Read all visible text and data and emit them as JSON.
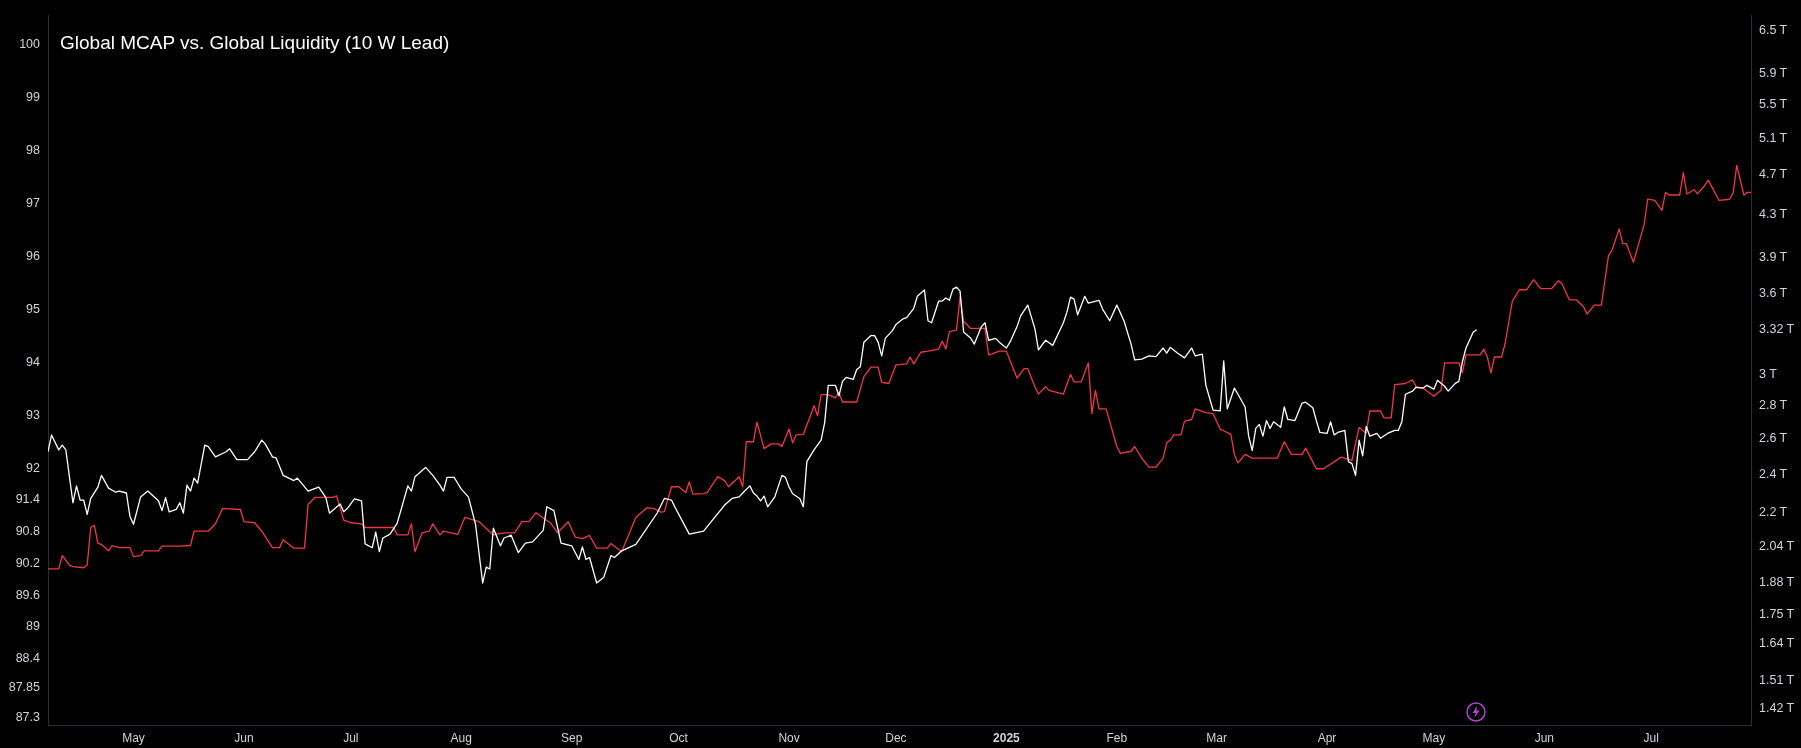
{
  "chart_data": {
    "type": "line",
    "title": "Global MCAP vs. Global Liquidity (10 W Lead)",
    "xlim": [
      "2024-04-07",
      "2025-07-29"
    ],
    "xticks": [
      {
        "value": "2024-05-01",
        "label": "May"
      },
      {
        "value": "2024-06-01",
        "label": "Jun"
      },
      {
        "value": "2024-07-01",
        "label": "Jul"
      },
      {
        "value": "2024-08-01",
        "label": "Aug"
      },
      {
        "value": "2024-09-01",
        "label": "Sep"
      },
      {
        "value": "2024-10-01",
        "label": "Oct"
      },
      {
        "value": "2024-11-01",
        "label": "Nov"
      },
      {
        "value": "2024-12-01",
        "label": "Dec"
      },
      {
        "value": "2025-01-01",
        "label": "2025"
      },
      {
        "value": "2025-02-01",
        "label": "Feb"
      },
      {
        "value": "2025-03-01",
        "label": "Mar"
      },
      {
        "value": "2025-04-01",
        "label": "Apr"
      },
      {
        "value": "2025-05-01",
        "label": "May"
      },
      {
        "value": "2025-06-01",
        "label": "Jun"
      },
      {
        "value": "2025-07-01",
        "label": "Jul"
      }
    ],
    "ylim": [
      87.15,
      100.55
    ],
    "yticks": [
      87.3,
      87.85,
      88.4,
      89,
      89.6,
      90.2,
      90.8,
      91.4,
      92,
      93,
      94,
      95,
      96,
      97,
      98,
      99,
      100
    ],
    "y2lim": [
      1.367,
      6.72
    ],
    "y2ticks": [
      {
        "value": 1.42,
        "label": "1.42 T"
      },
      {
        "value": 1.51,
        "label": "1.51 T"
      },
      {
        "value": 1.64,
        "label": "1.64 T"
      },
      {
        "value": 1.75,
        "label": "1.75 T"
      },
      {
        "value": 1.88,
        "label": "1.88 T"
      },
      {
        "value": 2.04,
        "label": "2.04 T"
      },
      {
        "value": 2.2,
        "label": "2.2 T"
      },
      {
        "value": 2.4,
        "label": "2.4 T"
      },
      {
        "value": 2.6,
        "label": "2.6 T"
      },
      {
        "value": 2.8,
        "label": "2.8 T"
      },
      {
        "value": 3,
        "label": "3 T"
      },
      {
        "value": 3.32,
        "label": "3.32 T"
      },
      {
        "value": 3.6,
        "label": "3.6 T"
      },
      {
        "value": 3.9,
        "label": "3.9 T"
      },
      {
        "value": 4.3,
        "label": "4.3 T"
      },
      {
        "value": 4.7,
        "label": "4.7 T"
      },
      {
        "value": 5.1,
        "label": "5.1 T"
      },
      {
        "value": 5.5,
        "label": "5.5 T"
      },
      {
        "value": 5.9,
        "label": "5.9 T"
      },
      {
        "value": 6.5,
        "label": "6.5 T"
      }
    ],
    "log": "y2",
    "grid": false,
    "legend": false,
    "marker": "none",
    "line_style": "solid",
    "series": [
      {
        "color": "#ffffff",
        "axis": "y2",
        "x": [
          "2024-04-07",
          "2024-04-08",
          "2024-04-10",
          "2024-04-11",
          "2024-04-12",
          "2024-04-14",
          "2024-04-15",
          "2024-04-16",
          "2024-04-17",
          "2024-04-18",
          "2024-04-19",
          "2024-04-21",
          "2024-04-22",
          "2024-04-24",
          "2024-04-26",
          "2024-04-27",
          "2024-04-29",
          "2024-04-30",
          "2024-05-01",
          "2024-05-03",
          "2024-05-05",
          "2024-05-08",
          "2024-05-09",
          "2024-05-10",
          "2024-05-11",
          "2024-05-13",
          "2024-05-14",
          "2024-05-15",
          "2024-05-16",
          "2024-05-17",
          "2024-05-18",
          "2024-05-19",
          "2024-05-21",
          "2024-05-22",
          "2024-05-24",
          "2024-05-27",
          "2024-05-28",
          "2024-05-30",
          "2024-06-02",
          "2024-06-04",
          "2024-06-06",
          "2024-06-07",
          "2024-06-09",
          "2024-06-10",
          "2024-06-12",
          "2024-06-15",
          "2024-06-16",
          "2024-06-19",
          "2024-06-22",
          "2024-06-24",
          "2024-06-25",
          "2024-06-28",
          "2024-06-29",
          "2024-06-30",
          "2024-07-02",
          "2024-07-04",
          "2024-07-05",
          "2024-07-07",
          "2024-07-08",
          "2024-07-09",
          "2024-07-10",
          "2024-07-12",
          "2024-07-14",
          "2024-07-17",
          "2024-07-18",
          "2024-07-19",
          "2024-07-22",
          "2024-07-24",
          "2024-07-26",
          "2024-07-27",
          "2024-07-28",
          "2024-07-30",
          "2024-07-31",
          "2024-08-01",
          "2024-08-03",
          "2024-08-05",
          "2024-08-07",
          "2024-08-08",
          "2024-08-09",
          "2024-08-10",
          "2024-08-12",
          "2024-08-13",
          "2024-08-15",
          "2024-08-17",
          "2024-08-19",
          "2024-08-21",
          "2024-08-24",
          "2024-08-25",
          "2024-08-27",
          "2024-08-29",
          "2024-09-01",
          "2024-09-03",
          "2024-09-04",
          "2024-09-05",
          "2024-09-06",
          "2024-09-08",
          "2024-09-10",
          "2024-09-12",
          "2024-09-13",
          "2024-09-15",
          "2024-09-19",
          "2024-09-25",
          "2024-09-27",
          "2024-09-29",
          "2024-09-30",
          "2024-10-04",
          "2024-10-08",
          "2024-10-14",
          "2024-10-16",
          "2024-10-18",
          "2024-10-19",
          "2024-10-21",
          "2024-10-22",
          "2024-10-23",
          "2024-10-24",
          "2024-10-25",
          "2024-10-26",
          "2024-10-28",
          "2024-10-30",
          "2024-10-31",
          "2024-11-01",
          "2024-11-02",
          "2024-11-04",
          "2024-11-05",
          "2024-11-06",
          "2024-11-08",
          "2024-11-10",
          "2024-11-11",
          "2024-11-12",
          "2024-11-14",
          "2024-11-15",
          "2024-11-16",
          "2024-11-17",
          "2024-11-19",
          "2024-11-20",
          "2024-11-21",
          "2024-11-22",
          "2024-11-24",
          "2024-11-25",
          "2024-11-26",
          "2024-11-27",
          "2024-11-28",
          "2024-11-30",
          "2024-12-01",
          "2024-12-03",
          "2024-12-04",
          "2024-12-06",
          "2024-12-07",
          "2024-12-09",
          "2024-12-10",
          "2024-12-11",
          "2024-12-13",
          "2024-12-14",
          "2024-12-15",
          "2024-12-16",
          "2024-12-17",
          "2024-12-18",
          "2024-12-19",
          "2024-12-20",
          "2024-12-22",
          "2024-12-23",
          "2024-12-25",
          "2024-12-26",
          "2024-12-27",
          "2024-12-29",
          "2024-12-30",
          "2025-01-01",
          "2025-01-02",
          "2025-01-04",
          "2025-01-05",
          "2025-01-07",
          "2025-01-09",
          "2025-01-10",
          "2025-01-12",
          "2025-01-14",
          "2025-01-17",
          "2025-01-18",
          "2025-01-19",
          "2025-01-20",
          "2025-01-21",
          "2025-01-23",
          "2025-01-24",
          "2025-01-27",
          "2025-01-28",
          "2025-01-30",
          "2025-02-01",
          "2025-02-03",
          "2025-02-05",
          "2025-02-06",
          "2025-02-08",
          "2025-02-10",
          "2025-02-12",
          "2025-02-14",
          "2025-02-15",
          "2025-02-16",
          "2025-02-18",
          "2025-02-20",
          "2025-02-22",
          "2025-02-23",
          "2025-02-25",
          "2025-02-26",
          "2025-02-28",
          "2025-03-02",
          "2025-03-03",
          "2025-03-04",
          "2025-03-06",
          "2025-03-07",
          "2025-03-09",
          "2025-03-10",
          "2025-03-11",
          "2025-03-12",
          "2025-03-13",
          "2025-03-14",
          "2025-03-15",
          "2025-03-16",
          "2025-03-17",
          "2025-03-19",
          "2025-03-20",
          "2025-03-21",
          "2025-03-23",
          "2025-03-24",
          "2025-03-25",
          "2025-03-26",
          "2025-03-28",
          "2025-03-29",
          "2025-03-30",
          "2025-04-01",
          "2025-04-02",
          "2025-04-03",
          "2025-04-04",
          "2025-04-06",
          "2025-04-07",
          "2025-04-08",
          "2025-04-09",
          "2025-04-10",
          "2025-04-11",
          "2025-04-12",
          "2025-04-13",
          "2025-04-15",
          "2025-04-16",
          "2025-04-18",
          "2025-04-20",
          "2025-04-21",
          "2025-04-22",
          "2025-04-23",
          "2025-04-25",
          "2025-04-26",
          "2025-04-28",
          "2025-04-29",
          "2025-05-01",
          "2025-05-02",
          "2025-05-04",
          "2025-05-05",
          "2025-05-07",
          "2025-05-08",
          "2025-05-09",
          "2025-05-10",
          "2025-05-11",
          "2025-05-12",
          "2025-05-13"
        ],
        "values": [
          2.524,
          2.621,
          2.535,
          2.562,
          2.535,
          2.251,
          2.338,
          2.265,
          2.265,
          2.193,
          2.273,
          2.332,
          2.394,
          2.326,
          2.305,
          2.311,
          2.301,
          2.183,
          2.145,
          2.281,
          2.311,
          2.261,
          2.212,
          2.277,
          2.206,
          2.218,
          2.251,
          2.199,
          2.342,
          2.311,
          2.379,
          2.352,
          2.562,
          2.553,
          2.495,
          2.524,
          2.541,
          2.48,
          2.48,
          2.524,
          2.591,
          2.568,
          2.495,
          2.49,
          2.394,
          2.366,
          2.379,
          2.311,
          2.332,
          2.277,
          2.199,
          2.245,
          2.206,
          2.222,
          2.271,
          2.261,
          2.053,
          2.035,
          2.108,
          2.017,
          2.08,
          2.098,
          2.149,
          2.338,
          2.311,
          2.387,
          2.437,
          2.394,
          2.342,
          2.311,
          2.383,
          2.383,
          2.352,
          2.321,
          2.281,
          2.145,
          1.88,
          1.948,
          1.94,
          2.126,
          2.044,
          2.08,
          2.093,
          2.013,
          2.056,
          2.062,
          2.116,
          2.231,
          2.212,
          2.056,
          2.044,
          1.982,
          2.039,
          1.982,
          1.991,
          1.88,
          1.905,
          1.999,
          1.991,
          2.021,
          2.05,
          2.2,
          2.273,
          2.265,
          2.228,
          2.098,
          2.112,
          2.241,
          2.273,
          2.281,
          2.301,
          2.338,
          2.301,
          2.285,
          2.261,
          2.285,
          2.231,
          2.281,
          2.394,
          2.383,
          2.332,
          2.297,
          2.273,
          2.231,
          2.469,
          2.535,
          2.591,
          2.695,
          2.93,
          2.93,
          2.862,
          2.956,
          2.982,
          2.969,
          3.036,
          3.055,
          3.228,
          3.276,
          3.276,
          3.228,
          3.13,
          3.256,
          3.313,
          3.358,
          3.402,
          3.411,
          3.483,
          3.578,
          3.629,
          3.387,
          3.372,
          3.54,
          3.54,
          3.565,
          3.546,
          3.636,
          3.652,
          3.62,
          3.302,
          3.256,
          3.214,
          3.343,
          3.372,
          3.242,
          3.256,
          3.228,
          3.186,
          3.228,
          3.343,
          3.424,
          3.508,
          3.328,
          3.172,
          3.242,
          3.205,
          3.372,
          3.453,
          3.571,
          3.556,
          3.433,
          3.578,
          3.524,
          3.546,
          3.477,
          3.387,
          3.508,
          3.387,
          3.214,
          3.103,
          3.108,
          3.13,
          3.125,
          3.186,
          3.15,
          3.191,
          3.15,
          3.116,
          3.186,
          3.13,
          3.143,
          2.93,
          2.772,
          2.767,
          3.095,
          2.779,
          2.912,
          2.872,
          2.791,
          2.614,
          2.531,
          2.66,
          2.684,
          2.614,
          2.707,
          2.66,
          2.7,
          2.667,
          2.791,
          2.714,
          2.707,
          2.762,
          2.816,
          2.821,
          2.786,
          2.707,
          2.636,
          2.63,
          2.7,
          2.621,
          2.636,
          2.648,
          2.469,
          2.458,
          2.394,
          2.591,
          2.501,
          2.672,
          2.614,
          2.63,
          2.602,
          2.63,
          2.648,
          2.648,
          2.7,
          2.872,
          2.892,
          2.917,
          2.912,
          2.93,
          2.905,
          2.964,
          2.924,
          2.892,
          2.943,
          2.956,
          3.089,
          3.186,
          3.242,
          3.3,
          3.32
        ]
      },
      {
        "color": "#f23645",
        "axis": "y",
        "x": [
          "2024-04-07",
          "2024-04-10",
          "2024-04-11",
          "2024-04-13",
          "2024-04-14",
          "2024-04-17",
          "2024-04-18",
          "2024-04-19",
          "2024-04-20",
          "2024-04-21",
          "2024-04-22",
          "2024-04-24",
          "2024-04-25",
          "2024-04-27",
          "2024-04-30",
          "2024-05-01",
          "2024-05-03",
          "2024-05-04",
          "2024-05-08",
          "2024-05-09",
          "2024-05-14",
          "2024-05-17",
          "2024-05-18",
          "2024-05-22",
          "2024-05-24",
          "2024-05-26",
          "2024-05-31",
          "2024-06-01",
          "2024-06-04",
          "2024-06-06",
          "2024-06-09",
          "2024-06-11",
          "2024-06-12",
          "2024-06-15",
          "2024-06-18",
          "2024-06-19",
          "2024-06-21",
          "2024-06-26",
          "2024-06-27",
          "2024-06-29",
          "2024-07-01",
          "2024-07-04",
          "2024-07-05",
          "2024-07-13",
          "2024-07-14",
          "2024-07-17",
          "2024-07-18",
          "2024-07-19",
          "2024-07-21",
          "2024-07-23",
          "2024-07-24",
          "2024-07-26",
          "2024-07-27",
          "2024-07-31",
          "2024-08-02",
          "2024-08-06",
          "2024-08-10",
          "2024-08-13",
          "2024-08-16",
          "2024-08-18",
          "2024-08-20",
          "2024-08-22",
          "2024-08-24",
          "2024-08-26",
          "2024-08-28",
          "2024-08-31",
          "2024-09-02",
          "2024-09-04",
          "2024-09-06",
          "2024-09-08",
          "2024-09-11",
          "2024-09-12",
          "2024-09-15",
          "2024-09-19",
          "2024-09-22",
          "2024-09-24",
          "2024-09-26",
          "2024-09-27",
          "2024-09-29",
          "2024-10-01",
          "2024-10-03",
          "2024-10-04",
          "2024-10-05",
          "2024-10-08",
          "2024-10-09",
          "2024-10-12",
          "2024-10-14",
          "2024-10-15",
          "2024-10-18",
          "2024-10-19",
          "2024-10-20",
          "2024-10-22",
          "2024-10-23",
          "2024-10-25",
          "2024-10-27",
          "2024-10-29",
          "2024-10-30",
          "2024-11-01",
          "2024-11-02",
          "2024-11-03",
          "2024-11-05",
          "2024-11-07",
          "2024-11-08",
          "2024-11-09",
          "2024-11-10",
          "2024-11-12",
          "2024-11-14",
          "2024-11-15",
          "2024-11-16",
          "2024-11-20",
          "2024-11-22",
          "2024-11-24",
          "2024-11-26",
          "2024-11-27",
          "2024-11-29",
          "2024-12-01",
          "2024-12-04",
          "2024-12-05",
          "2024-12-06",
          "2024-12-08",
          "2024-12-10",
          "2024-12-13",
          "2024-12-14",
          "2024-12-15",
          "2024-12-16",
          "2024-12-18",
          "2024-12-19",
          "2024-12-20",
          "2024-12-22",
          "2024-12-26",
          "2024-12-27",
          "2024-12-28",
          "2024-12-30",
          "2025-01-01",
          "2025-01-04",
          "2025-01-06",
          "2025-01-07",
          "2025-01-09",
          "2025-01-10",
          "2025-01-12",
          "2025-01-13",
          "2025-01-17",
          "2025-01-19",
          "2025-01-20",
          "2025-01-22",
          "2025-01-24",
          "2025-01-25",
          "2025-01-26",
          "2025-01-27",
          "2025-01-29",
          "2025-02-01",
          "2025-02-02",
          "2025-02-05",
          "2025-02-06",
          "2025-02-08",
          "2025-02-10",
          "2025-02-12",
          "2025-02-14",
          "2025-02-15",
          "2025-02-16",
          "2025-02-17",
          "2025-02-19",
          "2025-02-20",
          "2025-02-22",
          "2025-02-23",
          "2025-02-26",
          "2025-02-28",
          "2025-03-02",
          "2025-03-05",
          "2025-03-06",
          "2025-03-07",
          "2025-03-09",
          "2025-03-11",
          "2025-03-18",
          "2025-03-20",
          "2025-03-22",
          "2025-03-25",
          "2025-03-26",
          "2025-03-29",
          "2025-03-31",
          "2025-04-05",
          "2025-04-08",
          "2025-04-10",
          "2025-04-12",
          "2025-04-13",
          "2025-04-16",
          "2025-04-17",
          "2025-04-19",
          "2025-04-20",
          "2025-04-23",
          "2025-04-25",
          "2025-04-26",
          "2025-04-28",
          "2025-05-01",
          "2025-05-03",
          "2025-05-04",
          "2025-05-08",
          "2025-05-09",
          "2025-05-10",
          "2025-05-14",
          "2025-05-15",
          "2025-05-16",
          "2025-05-17",
          "2025-05-18",
          "2025-05-20",
          "2025-05-21",
          "2025-05-23",
          "2025-05-25",
          "2025-05-27",
          "2025-05-29",
          "2025-05-31",
          "2025-06-03",
          "2025-06-05",
          "2025-06-06",
          "2025-06-08",
          "2025-06-10",
          "2025-06-12",
          "2025-06-13",
          "2025-06-15",
          "2025-06-17",
          "2025-06-19",
          "2025-06-20",
          "2025-06-22",
          "2025-06-23",
          "2025-06-24",
          "2025-06-26",
          "2025-06-29",
          "2025-06-30",
          "2025-07-02",
          "2025-07-04",
          "2025-07-05",
          "2025-07-06",
          "2025-07-09",
          "2025-07-10",
          "2025-07-11",
          "2025-07-13",
          "2025-07-14",
          "2025-07-16",
          "2025-07-17",
          "2025-07-20",
          "2025-07-23",
          "2025-07-24",
          "2025-07-25",
          "2025-07-27",
          "2025-07-28",
          "2025-07-29"
        ],
        "values": [
          90.1,
          90.1,
          90.35,
          90.17,
          90.14,
          90.12,
          90.17,
          90.88,
          90.92,
          90.58,
          90.56,
          90.44,
          90.54,
          90.5,
          90.5,
          90.33,
          90.35,
          90.44,
          90.44,
          90.53,
          90.53,
          90.54,
          90.81,
          90.81,
          90.95,
          91.24,
          91.22,
          90.99,
          90.97,
          90.81,
          90.5,
          90.5,
          90.65,
          90.49,
          90.49,
          91.32,
          91.45,
          91.45,
          91.48,
          91.02,
          90.97,
          90.95,
          90.88,
          90.88,
          90.74,
          90.74,
          90.95,
          90.42,
          90.78,
          90.81,
          90.95,
          90.74,
          90.81,
          90.75,
          91.07,
          90.99,
          90.74,
          90.78,
          90.78,
          90.99,
          90.99,
          91.16,
          91.06,
          90.97,
          90.78,
          90.99,
          90.7,
          90.67,
          90.73,
          90.49,
          90.49,
          90.58,
          90.42,
          91.07,
          91.25,
          91.24,
          91.17,
          91.18,
          91.65,
          91.65,
          91.54,
          91.74,
          91.51,
          91.52,
          91.54,
          91.84,
          91.76,
          91.65,
          91.84,
          91.65,
          92.5,
          92.5,
          92.87,
          92.37,
          92.46,
          92.46,
          92.41,
          92.74,
          92.48,
          92.63,
          92.64,
          92.99,
          93.18,
          92.99,
          93.39,
          93.39,
          93.33,
          93.43,
          93.25,
          93.25,
          93.73,
          93.91,
          93.91,
          93.62,
          93.6,
          93.95,
          93.97,
          94.1,
          93.97,
          94.19,
          94.21,
          94.25,
          94.4,
          94.25,
          94.58,
          94.61,
          95.24,
          94.77,
          94.64,
          94.64,
          94.14,
          94.16,
          94.21,
          94.21,
          93.7,
          93.88,
          93.88,
          93.54,
          93.4,
          93.54,
          93.47,
          93.4,
          93.77,
          93.63,
          93.63,
          93.99,
          93.03,
          93.47,
          93.12,
          93.12,
          92.41,
          92.28,
          92.32,
          92.41,
          92.19,
          92.02,
          92.02,
          92.19,
          92.48,
          92.53,
          92.63,
          92.63,
          92.89,
          92.92,
          93.12,
          93.05,
          93.03,
          92.74,
          92.64,
          92.26,
          92.1,
          92.26,
          92.19,
          92.19,
          92.5,
          92.26,
          92.26,
          92.38,
          91.99,
          91.99,
          92.21,
          92.15,
          92.77,
          92.66,
          93.08,
          93.08,
          92.95,
          92.95,
          93.58,
          93.6,
          93.67,
          93.54,
          93.51,
          93.36,
          93.47,
          93.99,
          93.99,
          93.8,
          94.14,
          94.14,
          94.25,
          94.1,
          93.8,
          94.1,
          94.1,
          94.36,
          95.15,
          95.37,
          95.37,
          95.56,
          95.39,
          95.39,
          95.54,
          95.48,
          95.18,
          95.18,
          95.05,
          94.91,
          95.08,
          95.08,
          96.01,
          96.12,
          96.52,
          96.24,
          96.24,
          95.89,
          96.6,
          97.08,
          97.06,
          96.87,
          97.21,
          97.16,
          97.16,
          97.58,
          97.18,
          97.26,
          97.18,
          97.34,
          97.44,
          97.06,
          97.08,
          97.2,
          97.72,
          97.16,
          97.21,
          97.21
        ]
      }
    ]
  }
}
